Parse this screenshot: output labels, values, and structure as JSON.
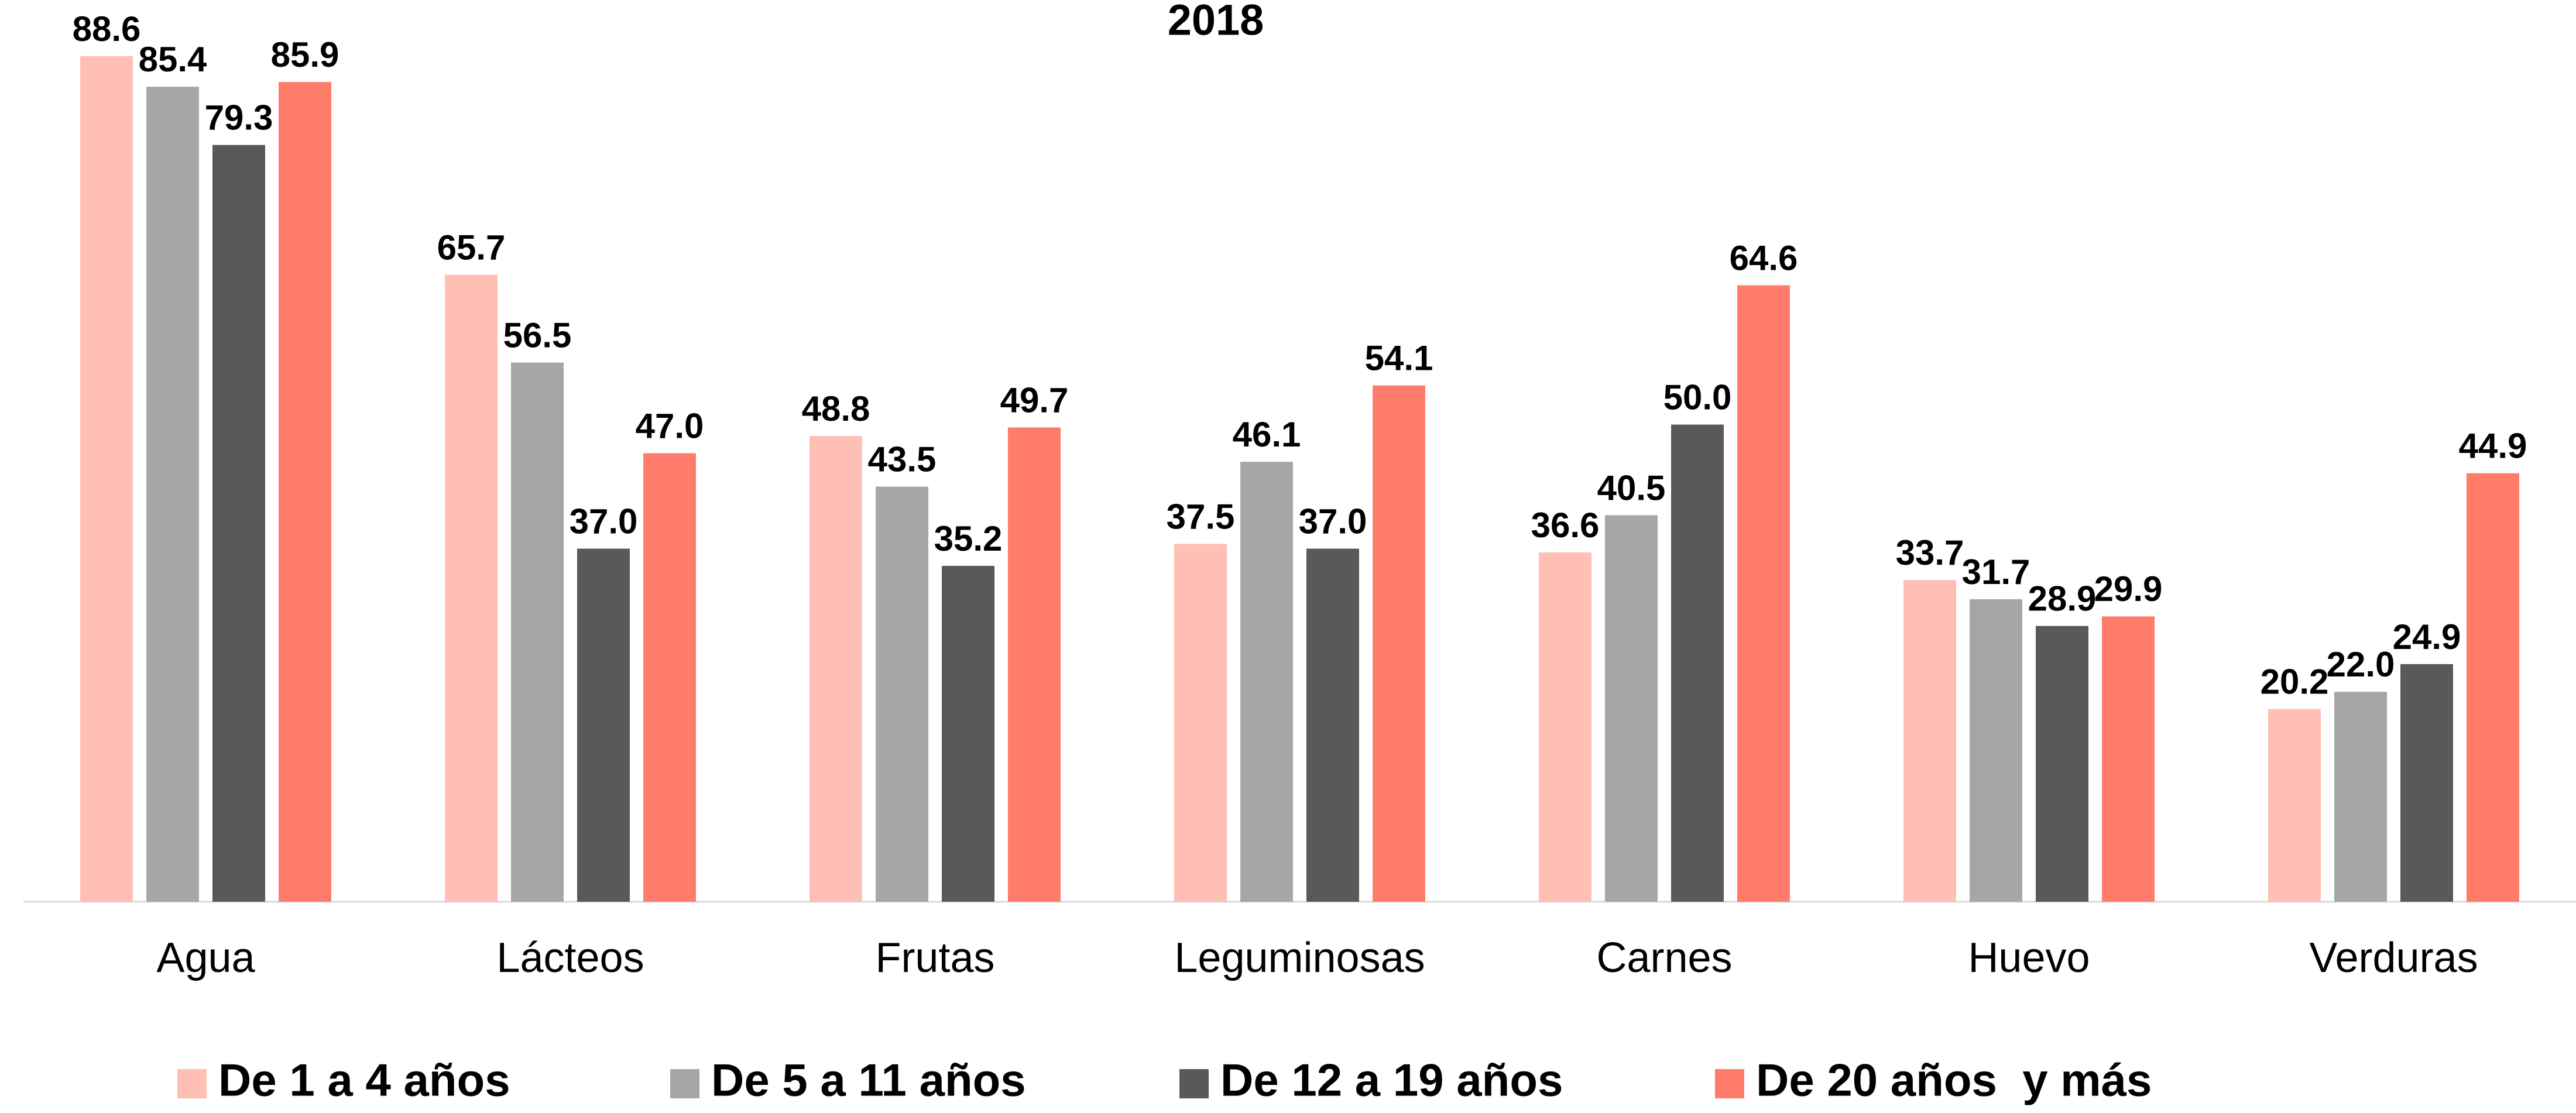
{
  "chart_data": {
    "type": "bar",
    "title": "2018",
    "categories": [
      "Agua",
      "Lácteos",
      "Frutas",
      "Leguminosas",
      "Carnes",
      "Huevo",
      "Verduras"
    ],
    "series": [
      {
        "name": "De 1 a 4 años",
        "color": "#ffbfb5",
        "values": [
          88.6,
          65.7,
          48.8,
          37.5,
          36.6,
          33.7,
          20.2
        ]
      },
      {
        "name": "De 5 a 11 años",
        "color": "#a6a6a6",
        "values": [
          85.4,
          56.5,
          43.5,
          46.1,
          40.5,
          31.7,
          22.0
        ],
        "value_labels": [
          "85.4",
          "56.5",
          "43.5",
          "46.1",
          "40.5",
          "31.7",
          "22.0"
        ]
      },
      {
        "name": "De 12 a 19 años",
        "color": "#595959",
        "values": [
          79.3,
          37.0,
          35.2,
          37.0,
          50.0,
          28.9,
          24.9
        ],
        "value_labels": [
          "79.3",
          "37.0",
          "35.2",
          "37.0",
          "50.0",
          "28.9",
          "24.9"
        ]
      },
      {
        "name": "De 20 años  y más",
        "color": "#ff7c6b",
        "values": [
          85.9,
          47.0,
          49.7,
          54.1,
          64.6,
          29.9,
          44.9
        ],
        "value_labels": [
          "85.9",
          "47.0",
          "49.7",
          "54.1",
          "64.6",
          "29.9",
          "44.9"
        ]
      }
    ],
    "ylim": [
      0,
      94
    ],
    "legend": "bottom"
  }
}
